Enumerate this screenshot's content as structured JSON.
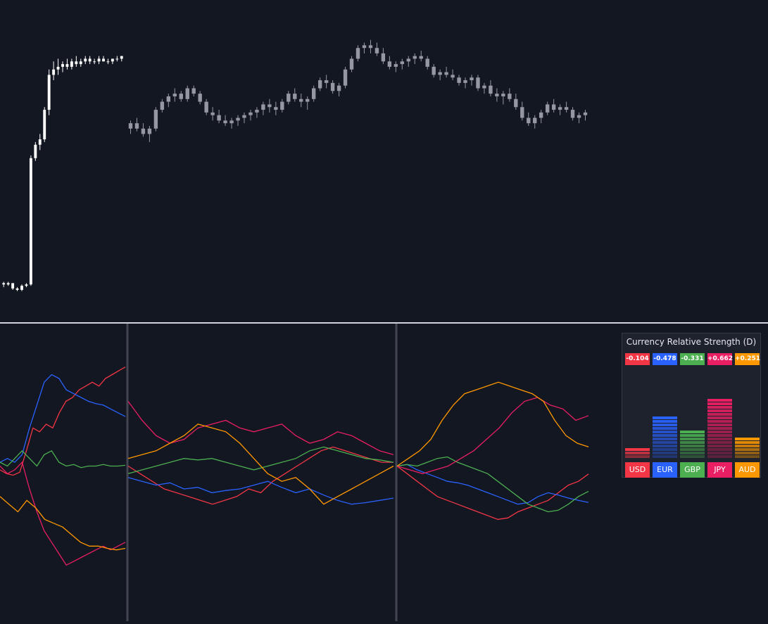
{
  "price_chart": {
    "type": "candlestick",
    "ylim": [
      0,
      100
    ],
    "segments": [
      {
        "name": "segment-1",
        "color": "#ffffff",
        "series": [
          [
            2.5,
            3,
            1,
            2
          ],
          [
            2,
            3,
            1.5,
            2.5
          ],
          [
            2.5,
            2.5,
            0,
            0.5
          ],
          [
            0.5,
            1,
            -0.5,
            0
          ],
          [
            0,
            2,
            -0.5,
            1.5
          ],
          [
            1.5,
            2.5,
            1,
            2
          ],
          [
            2,
            50,
            1.5,
            49
          ],
          [
            49,
            55,
            48,
            54
          ],
          [
            54,
            58,
            52,
            56
          ],
          [
            56,
            68,
            55,
            67
          ],
          [
            67,
            82,
            65,
            80
          ],
          [
            80,
            85,
            78,
            82
          ],
          [
            82,
            86,
            80,
            83
          ],
          [
            83,
            85,
            81,
            84
          ],
          [
            84,
            86,
            82,
            83
          ],
          [
            83,
            86,
            82,
            85
          ],
          [
            85,
            87,
            83,
            84
          ],
          [
            84,
            86,
            83,
            85
          ],
          [
            85,
            87,
            84,
            86
          ],
          [
            86,
            87,
            84,
            85
          ],
          [
            85,
            86,
            84,
            85
          ],
          [
            85,
            87,
            84,
            86
          ],
          [
            86,
            87,
            85,
            85
          ],
          [
            85,
            86,
            84,
            85
          ],
          [
            85,
            86,
            84,
            86
          ],
          [
            86,
            87,
            85,
            86
          ],
          [
            86,
            87,
            85,
            87
          ]
        ]
      },
      {
        "name": "segment-2",
        "color": "#9598a1",
        "series": [
          [
            60,
            63,
            58,
            62
          ],
          [
            62,
            64,
            59,
            60
          ],
          [
            60,
            62,
            57,
            58
          ],
          [
            58,
            61,
            55,
            60
          ],
          [
            60,
            68,
            59,
            67
          ],
          [
            67,
            71,
            66,
            70
          ],
          [
            70,
            73,
            68,
            72
          ],
          [
            72,
            75,
            70,
            73
          ],
          [
            73,
            74,
            70,
            71
          ],
          [
            71,
            76,
            70,
            75
          ],
          [
            75,
            76,
            72,
            73
          ],
          [
            73,
            74,
            69,
            70
          ],
          [
            70,
            71,
            65,
            66
          ],
          [
            66,
            68,
            63,
            65
          ],
          [
            65,
            67,
            62,
            63
          ],
          [
            63,
            65,
            61,
            62
          ],
          [
            62,
            64,
            60,
            63
          ],
          [
            63,
            65,
            61,
            64
          ],
          [
            64,
            66,
            62,
            65
          ],
          [
            65,
            67,
            63,
            66
          ],
          [
            66,
            68,
            64,
            67
          ],
          [
            67,
            70,
            65,
            69
          ],
          [
            69,
            71,
            66,
            68
          ],
          [
            68,
            70,
            65,
            67
          ],
          [
            67,
            71,
            66,
            70
          ],
          [
            70,
            74,
            69,
            73
          ],
          [
            73,
            75,
            70,
            71
          ],
          [
            71,
            73,
            68,
            70
          ],
          [
            70,
            72,
            67,
            71
          ],
          [
            71,
            76,
            70,
            75
          ],
          [
            75,
            79,
            74,
            78
          ],
          [
            78,
            80,
            75,
            77
          ],
          [
            77,
            78,
            73,
            74
          ],
          [
            74,
            77,
            72,
            76
          ],
          [
            76,
            83,
            75,
            82
          ],
          [
            82,
            87,
            81,
            86
          ],
          [
            86,
            91,
            85,
            90
          ],
          [
            90,
            92,
            88,
            91
          ],
          [
            91,
            93,
            88,
            90
          ],
          [
            90,
            92,
            87,
            88
          ],
          [
            88,
            90,
            84,
            85
          ],
          [
            85,
            87,
            82,
            83
          ],
          [
            83,
            85,
            81,
            84
          ],
          [
            84,
            86,
            82,
            85
          ],
          [
            85,
            87,
            83,
            86
          ],
          [
            86,
            88,
            84,
            87
          ],
          [
            87,
            89,
            85,
            86
          ],
          [
            86,
            87,
            82,
            83
          ],
          [
            83,
            84,
            79,
            80
          ],
          [
            80,
            82,
            78,
            81
          ],
          [
            81,
            83,
            79,
            80
          ],
          [
            80,
            82,
            78,
            79
          ],
          [
            79,
            80,
            76,
            77
          ],
          [
            77,
            79,
            75,
            78
          ],
          [
            78,
            80,
            76,
            79
          ],
          [
            79,
            80,
            74,
            75
          ],
          [
            75,
            77,
            73,
            76
          ],
          [
            76,
            78,
            72,
            73
          ],
          [
            73,
            75,
            70,
            72
          ],
          [
            72,
            74,
            69,
            73
          ],
          [
            73,
            75,
            70,
            71
          ],
          [
            71,
            73,
            67,
            68
          ],
          [
            68,
            70,
            63,
            64
          ],
          [
            64,
            66,
            61,
            62
          ],
          [
            62,
            65,
            60,
            64
          ],
          [
            64,
            67,
            62,
            66
          ],
          [
            66,
            70,
            65,
            69
          ],
          [
            69,
            71,
            66,
            67
          ],
          [
            67,
            69,
            65,
            68
          ],
          [
            68,
            70,
            66,
            67
          ],
          [
            67,
            68,
            63,
            64
          ],
          [
            64,
            66,
            62,
            65
          ],
          [
            65,
            67,
            63,
            66
          ]
        ]
      }
    ]
  },
  "chart_data": {
    "type": "line",
    "ylim": [
      -1.5,
      1.5
    ],
    "sessions": 3,
    "series": [
      {
        "name": "USD",
        "color": "#f23645",
        "session_values": [
          [
            -0.05,
            -0.1,
            -0.12,
            -0.08,
            0.2,
            0.5,
            0.45,
            0.55,
            0.5,
            0.7,
            0.85,
            0.9,
            1.0,
            1.05,
            1.1,
            1.05,
            1.15,
            1.2,
            1.25,
            1.3
          ],
          [
            0.0,
            -0.1,
            -0.2,
            -0.3,
            -0.35,
            -0.4,
            -0.45,
            -0.5,
            -0.45,
            -0.4,
            -0.3,
            -0.35,
            -0.2,
            -0.1,
            0.0,
            0.1,
            0.2,
            0.25,
            0.2,
            0.15,
            0.1,
            0.05,
            0.05
          ],
          [
            0.0,
            -0.1,
            -0.2,
            -0.3,
            -0.4,
            -0.45,
            -0.5,
            -0.55,
            -0.6,
            -0.65,
            -0.7,
            -0.68,
            -0.6,
            -0.55,
            -0.5,
            -0.45,
            -0.35,
            -0.25,
            -0.2,
            -0.104
          ]
        ]
      },
      {
        "name": "EUR",
        "color": "#2962ff",
        "session_values": [
          [
            0.05,
            0.1,
            0.05,
            0.15,
            0.5,
            0.8,
            1.1,
            1.2,
            1.15,
            1.0,
            0.95,
            0.9,
            0.85,
            0.82,
            0.8,
            0.75,
            0.7,
            0.65
          ],
          [
            -0.15,
            -0.2,
            -0.25,
            -0.22,
            -0.3,
            -0.28,
            -0.35,
            -0.32,
            -0.3,
            -0.25,
            -0.2,
            -0.28,
            -0.35,
            -0.3,
            -0.38,
            -0.45,
            -0.5,
            -0.48,
            -0.45,
            -0.42
          ],
          [
            0.0,
            0.02,
            -0.05,
            -0.1,
            -0.15,
            -0.2,
            -0.22,
            -0.25,
            -0.3,
            -0.35,
            -0.4,
            -0.45,
            -0.5,
            -0.48,
            -0.4,
            -0.35,
            -0.38,
            -0.42,
            -0.45,
            -0.478
          ]
        ]
      },
      {
        "name": "GBP",
        "color": "#4caf50",
        "session_values": [
          [
            0.05,
            0.0,
            0.1,
            0.2,
            0.1,
            0.0,
            0.15,
            0.2,
            0.05,
            0.0,
            0.02,
            -0.02,
            0.0,
            0.0,
            0.02,
            0.0,
            0.0,
            0.01
          ],
          [
            -0.1,
            -0.05,
            0.0,
            0.05,
            0.1,
            0.08,
            0.1,
            0.05,
            0.0,
            -0.05,
            0.0,
            0.05,
            0.1,
            0.2,
            0.25,
            0.2,
            0.15,
            0.1,
            0.08,
            0.05
          ],
          [
            0.0,
            0.02,
            0.0,
            0.05,
            0.1,
            0.12,
            0.05,
            0.0,
            -0.05,
            -0.1,
            -0.2,
            -0.3,
            -0.4,
            -0.5,
            -0.55,
            -0.6,
            -0.58,
            -0.5,
            -0.4,
            -0.331
          ]
        ]
      },
      {
        "name": "JPY",
        "color": "#e91e63",
        "session_values": [
          [
            0.0,
            -0.1,
            -0.05,
            0.05,
            -0.3,
            -0.6,
            -0.85,
            -1.0,
            -1.15,
            -1.3,
            -1.25,
            -1.2,
            -1.15,
            -1.1,
            -1.05,
            -1.1,
            -1.05,
            -1.0
          ],
          [
            0.85,
            0.6,
            0.4,
            0.3,
            0.35,
            0.5,
            0.55,
            0.6,
            0.5,
            0.45,
            0.5,
            0.55,
            0.4,
            0.3,
            0.35,
            0.45,
            0.4,
            0.3,
            0.2,
            0.15
          ],
          [
            0.0,
            -0.05,
            -0.1,
            -0.05,
            0.0,
            0.1,
            0.2,
            0.35,
            0.5,
            0.7,
            0.85,
            0.9,
            0.8,
            0.75,
            0.6,
            0.662
          ]
        ]
      },
      {
        "name": "AUD",
        "color": "#ff9800",
        "session_values": [
          [
            -0.4,
            -0.5,
            -0.6,
            -0.45,
            -0.55,
            -0.7,
            -0.75,
            -0.8,
            -0.9,
            -1.0,
            -1.05,
            -1.05,
            -1.08,
            -1.1,
            -1.08
          ],
          [
            0.1,
            0.15,
            0.2,
            0.3,
            0.4,
            0.55,
            0.5,
            0.45,
            0.3,
            0.1,
            -0.1,
            -0.2,
            -0.15,
            -0.3,
            -0.5,
            -0.4,
            -0.3,
            -0.2,
            -0.1,
            0.0
          ],
          [
            0.0,
            0.1,
            0.2,
            0.35,
            0.6,
            0.8,
            0.95,
            1.0,
            1.05,
            1.1,
            1.05,
            1.0,
            0.95,
            0.85,
            0.6,
            0.4,
            0.3,
            0.251
          ]
        ]
      }
    ]
  },
  "strength_table": {
    "title": "Currency Relative Strength (D)",
    "max_abs": 1.0,
    "currencies": [
      {
        "name": "USD",
        "value_text": "-0.104",
        "value": -0.104,
        "color": "#f23645"
      },
      {
        "name": "EUR",
        "value_text": "-0.478",
        "value": -0.478,
        "color": "#2962ff"
      },
      {
        "name": "GBP",
        "value_text": "-0.331",
        "value": -0.331,
        "color": "#4caf50"
      },
      {
        "name": "JPY",
        "value_text": "+0.662",
        "value": 0.662,
        "color": "#e91e63"
      },
      {
        "name": "AUD",
        "value_text": "+0.251",
        "value": 0.251,
        "color": "#ff9800"
      }
    ]
  }
}
